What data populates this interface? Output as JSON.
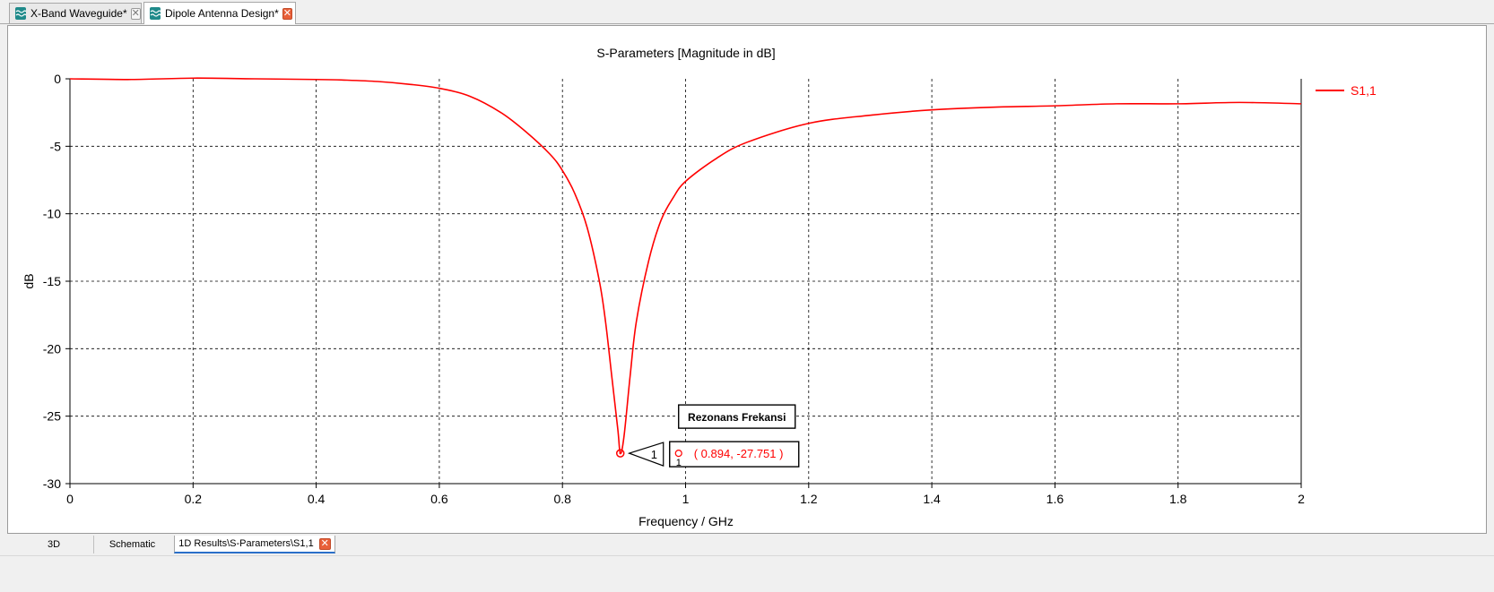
{
  "tabs": [
    {
      "label": "X-Band Waveguide*",
      "active": false
    },
    {
      "label": "Dipole Antenna Design*",
      "active": true
    }
  ],
  "bottom_tabs": [
    {
      "label": "3D"
    },
    {
      "label": "Schematic"
    },
    {
      "label": "1D Results\\S-Parameters\\S1,1",
      "active": true
    }
  ],
  "colors": {
    "series": "#ff0000",
    "grid": "#000000",
    "close_active": "#e8603a"
  },
  "chart_data": {
    "type": "line",
    "title": "S-Parameters [Magnitude in dB]",
    "xlabel": "Frequency / GHz",
    "ylabel": "dB",
    "xlim": [
      0,
      2
    ],
    "ylim": [
      -30,
      0
    ],
    "xticks": [
      0,
      0.2,
      0.4,
      0.6,
      0.8,
      1,
      1.2,
      1.4,
      1.6,
      1.8,
      2
    ],
    "xtick_labels": [
      "0",
      "0.2",
      "0.4",
      "0.6",
      "0.8",
      "1",
      "1.2",
      "1.4",
      "1.6",
      "1.8",
      "2"
    ],
    "yticks": [
      0,
      -5,
      -10,
      -15,
      -20,
      -25,
      -30
    ],
    "ytick_labels": [
      "0",
      "-5",
      "-10",
      "-15",
      "-20",
      "-25",
      "-30"
    ],
    "grid": true,
    "legend": "right",
    "series": [
      {
        "name": "S1,1",
        "color": "#ff0000",
        "x": [
          0,
          0.1,
          0.2,
          0.3,
          0.4,
          0.45,
          0.5,
          0.55,
          0.6,
          0.65,
          0.7,
          0.74,
          0.78,
          0.8,
          0.82,
          0.84,
          0.86,
          0.87,
          0.88,
          0.89,
          0.894,
          0.9,
          0.91,
          0.92,
          0.94,
          0.96,
          0.98,
          1.0,
          1.05,
          1.1,
          1.2,
          1.3,
          1.4,
          1.5,
          1.6,
          1.7,
          1.8,
          1.9,
          2.0
        ],
        "y": [
          0,
          -0.05,
          0.05,
          0.0,
          -0.05,
          -0.1,
          -0.2,
          -0.4,
          -0.7,
          -1.3,
          -2.5,
          -3.9,
          -5.6,
          -6.8,
          -8.5,
          -11.0,
          -15.0,
          -18.0,
          -22.0,
          -26.0,
          -27.751,
          -26.5,
          -22.0,
          -18.0,
          -13.5,
          -10.5,
          -8.8,
          -7.6,
          -5.9,
          -4.7,
          -3.3,
          -2.7,
          -2.3,
          -2.1,
          -2.0,
          -1.85,
          -1.85,
          -1.75,
          -1.85
        ]
      }
    ],
    "marker": {
      "id": "1",
      "x": 0.894,
      "y": -27.751,
      "label_title": "Rezonans Frekansi",
      "readout": "( 0.894, -27.751 )"
    }
  }
}
